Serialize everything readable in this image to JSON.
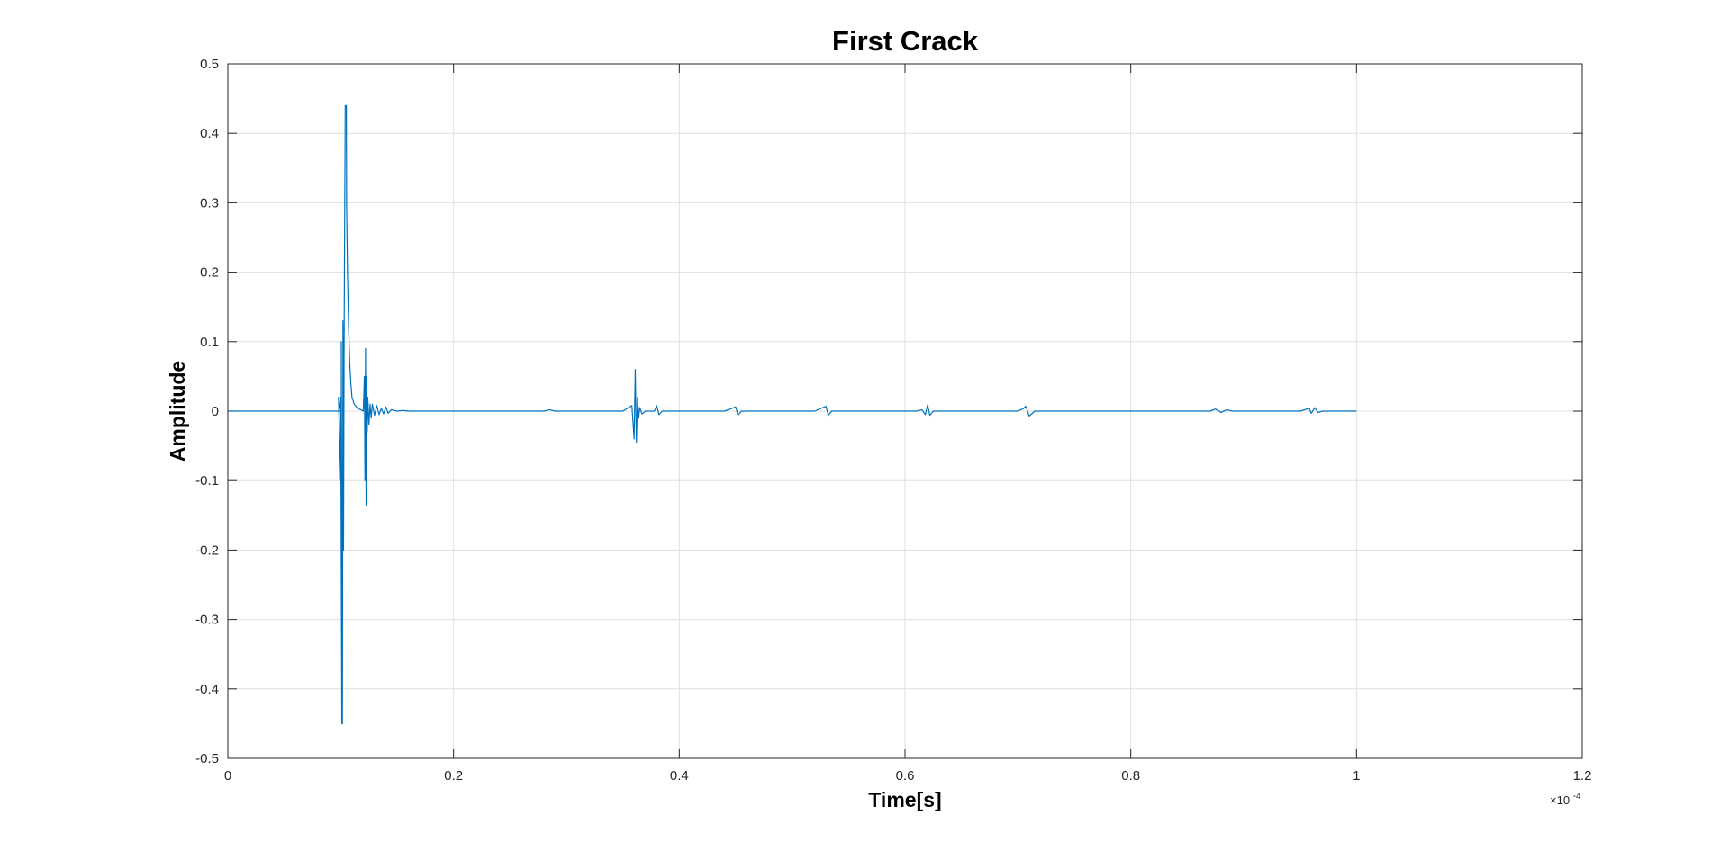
{
  "chart_data": {
    "type": "line",
    "title": "First Crack",
    "xlabel": "Time[s]",
    "ylabel": "Amplitude",
    "x_exponent_label": "×10",
    "x_exponent_power": "-4",
    "xlim": [
      0,
      1.2
    ],
    "ylim": [
      -0.5,
      0.5
    ],
    "x_ticks": [
      0,
      0.2,
      0.4,
      0.6,
      0.8,
      1.0,
      1.2
    ],
    "x_tick_labels": [
      "0",
      "0.2",
      "0.4",
      "0.6",
      "0.8",
      "1",
      "1.2"
    ],
    "y_ticks": [
      -0.5,
      -0.4,
      -0.3,
      -0.2,
      -0.1,
      0,
      0.1,
      0.2,
      0.3,
      0.4,
      0.5
    ],
    "y_tick_labels": [
      "-0.5",
      "-0.4",
      "-0.3",
      "-0.2",
      "-0.1",
      "0",
      "0.1",
      "0.2",
      "0.3",
      "0.4",
      "0.5"
    ],
    "grid": true,
    "line_color": "#0072BD",
    "series": [
      {
        "x": [
          0,
          0.05,
          0.1,
          0.098,
          0.1,
          0.1,
          0.101,
          0.1005,
          0.1015,
          0.102,
          0.1025,
          0.103,
          0.104,
          0.105,
          0.1052,
          0.106,
          0.107,
          0.108,
          0.109,
          0.11,
          0.112,
          0.115,
          0.118,
          0.12,
          0.121,
          0.1215,
          0.122,
          0.1225,
          0.123,
          0.1235,
          0.124,
          0.125,
          0.126,
          0.127,
          0.128,
          0.13,
          0.132,
          0.134,
          0.136,
          0.138,
          0.14,
          0.142,
          0.145,
          0.15,
          0.155,
          0.16,
          0.2,
          0.28,
          0.285,
          0.29,
          0.35,
          0.358,
          0.36,
          0.361,
          0.362,
          0.363,
          0.364,
          0.365,
          0.367,
          0.37,
          0.378,
          0.38,
          0.382,
          0.385,
          0.44,
          0.45,
          0.452,
          0.455,
          0.52,
          0.53,
          0.532,
          0.535,
          0.61,
          0.615,
          0.618,
          0.62,
          0.622,
          0.625,
          0.7,
          0.705,
          0.707,
          0.71,
          0.715,
          0.8,
          0.87,
          0.875,
          0.88,
          0.885,
          0.89,
          0.95,
          0.958,
          0.96,
          0.963,
          0.966,
          0.97,
          1.0
        ],
        "y": [
          0,
          0,
          0,
          0.02,
          -0.1,
          0.02,
          -0.45,
          0.1,
          -0.45,
          0.13,
          -0.2,
          0.1,
          0.44,
          0.44,
          0.3,
          0.2,
          0.12,
          0.07,
          0.04,
          0.02,
          0.01,
          0.004,
          0.002,
          0,
          0.05,
          -0.1,
          0.09,
          -0.135,
          0.05,
          -0.03,
          0.02,
          -0.02,
          0.01,
          -0.01,
          0.01,
          -0.006,
          0.008,
          -0.005,
          0.004,
          -0.004,
          0.006,
          -0.003,
          0.002,
          0,
          0.001,
          0,
          0,
          0,
          0.002,
          0,
          0,
          0.008,
          -0.04,
          0.06,
          -0.045,
          0.02,
          -0.01,
          0.005,
          -0.004,
          0,
          0,
          0.008,
          -0.005,
          0,
          0,
          0.006,
          -0.006,
          0,
          0,
          0.007,
          -0.006,
          0,
          0,
          0.002,
          -0.005,
          0.009,
          -0.006,
          0,
          0,
          0.004,
          0.007,
          -0.007,
          0,
          0,
          0,
          0.003,
          -0.002,
          0.002,
          0,
          0,
          0.004,
          -0.003,
          0.005,
          -0.002,
          0,
          0
        ]
      }
    ]
  }
}
